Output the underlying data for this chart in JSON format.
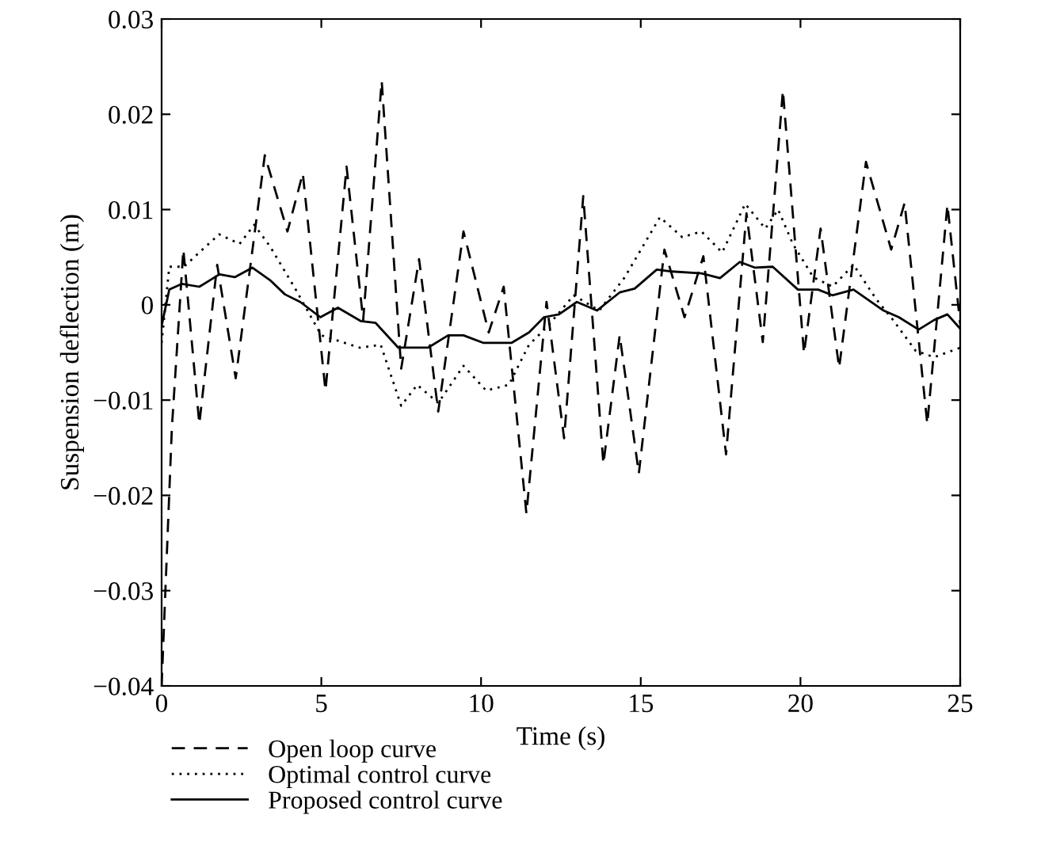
{
  "chart_data": {
    "type": "line",
    "xlabel": "Time (s)",
    "ylabel": "Suspension deflection (m)",
    "xlim": [
      0,
      25
    ],
    "xticks": [
      0,
      5,
      10,
      15,
      20,
      25
    ],
    "ylim": [
      -0.04,
      0.03
    ],
    "yticks": [
      {
        "value": -0.04,
        "label": "−0.04"
      },
      {
        "value": -0.03,
        "label": "−0.03"
      },
      {
        "value": -0.02,
        "label": "−0.02"
      },
      {
        "value": -0.01,
        "label": "−0.01"
      },
      0,
      0.01,
      0.02,
      0.03
    ],
    "grid": false,
    "legend": "bottom",
    "series": [
      {
        "name": "Open loop curve",
        "color": "#000000",
        "line_style": "dashed",
        "x": [
          0,
          0.32,
          0.68,
          1.18,
          1.74,
          2.32,
          3.23,
          3.94,
          4.42,
          5.13,
          5.79,
          6.31,
          6.89,
          7.5,
          8.06,
          8.66,
          9.45,
          10.24,
          10.71,
          11.42,
          12.05,
          12.6,
          13.2,
          13.83,
          14.34,
          14.94,
          15.74,
          16.37,
          16.96,
          17.67,
          18.31,
          18.82,
          19.45,
          20.11,
          20.63,
          21.21,
          22.05,
          22.84,
          23.26,
          23.97,
          24.6,
          25
        ],
        "values": [
          -0.04,
          -0.013,
          0.0058,
          -0.0125,
          0.0042,
          -0.0077,
          0.0157,
          0.0077,
          0.0138,
          -0.009,
          0.0145,
          -0.0016,
          0.0235,
          -0.0067,
          0.0048,
          -0.0112,
          0.0077,
          -0.0029,
          0.0019,
          -0.0219,
          0.0003,
          -0.014,
          0.0114,
          -0.0167,
          -0.0032,
          -0.0177,
          0.0058,
          -0.0013,
          0.0051,
          -0.0157,
          0.0096,
          -0.0039,
          0.0225,
          -0.0051,
          0.008,
          -0.0066,
          0.015,
          0.0058,
          0.0107,
          -0.0125,
          0.0105,
          -0.002
        ]
      },
      {
        "name": "Optimal control curve",
        "color": "#000000",
        "line_style": "dotted",
        "x": [
          0,
          0.24,
          0.7,
          1.18,
          1.8,
          2.44,
          2.9,
          3.4,
          4.2,
          5.0,
          6.2,
          6.86,
          7.5,
          8.0,
          8.66,
          9.45,
          10.16,
          10.87,
          11.5,
          12.1,
          12.9,
          13.7,
          14.5,
          15.6,
          16.3,
          16.9,
          17.55,
          18.27,
          18.9,
          19.3,
          19.76,
          20.4,
          21.0,
          21.66,
          22.37,
          22.9,
          23.6,
          24.18,
          25
        ],
        "values": [
          -0.004,
          0.004,
          0.004,
          0.0055,
          0.0074,
          0.0064,
          0.0084,
          0.0061,
          0.0016,
          -0.0032,
          -0.0045,
          -0.0042,
          -0.0106,
          -0.0084,
          -0.0103,
          -0.0064,
          -0.009,
          -0.0084,
          -0.0042,
          -0.0022,
          0.001,
          -0.0006,
          0.0029,
          0.0092,
          0.0071,
          0.0077,
          0.0055,
          0.0106,
          0.008,
          0.01,
          0.0064,
          0.0029,
          0.0019,
          0.0042,
          0.0006,
          -0.0016,
          -0.0048,
          -0.0055,
          -0.0045
        ]
      },
      {
        "name": "Proposed control curve",
        "color": "#000000",
        "line_style": "solid",
        "x": [
          0,
          0.24,
          0.63,
          1.18,
          1.81,
          2.29,
          2.84,
          3.39,
          3.86,
          4.34,
          4.97,
          5.52,
          6.23,
          6.7,
          7.41,
          8.34,
          8.97,
          9.45,
          10.08,
          10.95,
          11.5,
          11.97,
          12.44,
          13.0,
          13.63,
          14.34,
          14.81,
          15.5,
          15.98,
          16.9,
          17.48,
          18.1,
          18.58,
          19.13,
          19.92,
          20.55,
          21.0,
          21.66,
          22.6,
          23.08,
          23.7,
          24.18,
          24.6,
          25
        ],
        "values": [
          -0.0022,
          0.0016,
          0.0022,
          0.0019,
          0.0032,
          0.0029,
          0.0039,
          0.0026,
          0.0011,
          0.0003,
          -0.0013,
          -0.0003,
          -0.0017,
          -0.0019,
          -0.0045,
          -0.0045,
          -0.0032,
          -0.0032,
          -0.004,
          -0.004,
          -0.0029,
          -0.0013,
          -0.001,
          0.0003,
          -0.0006,
          0.0013,
          0.0017,
          0.0037,
          0.0035,
          0.0033,
          0.0028,
          0.0045,
          0.0039,
          0.004,
          0.0016,
          0.0016,
          0.001,
          0.0016,
          -0.0006,
          -0.0013,
          -0.0026,
          -0.0016,
          -0.001,
          -0.0025
        ]
      }
    ]
  }
}
